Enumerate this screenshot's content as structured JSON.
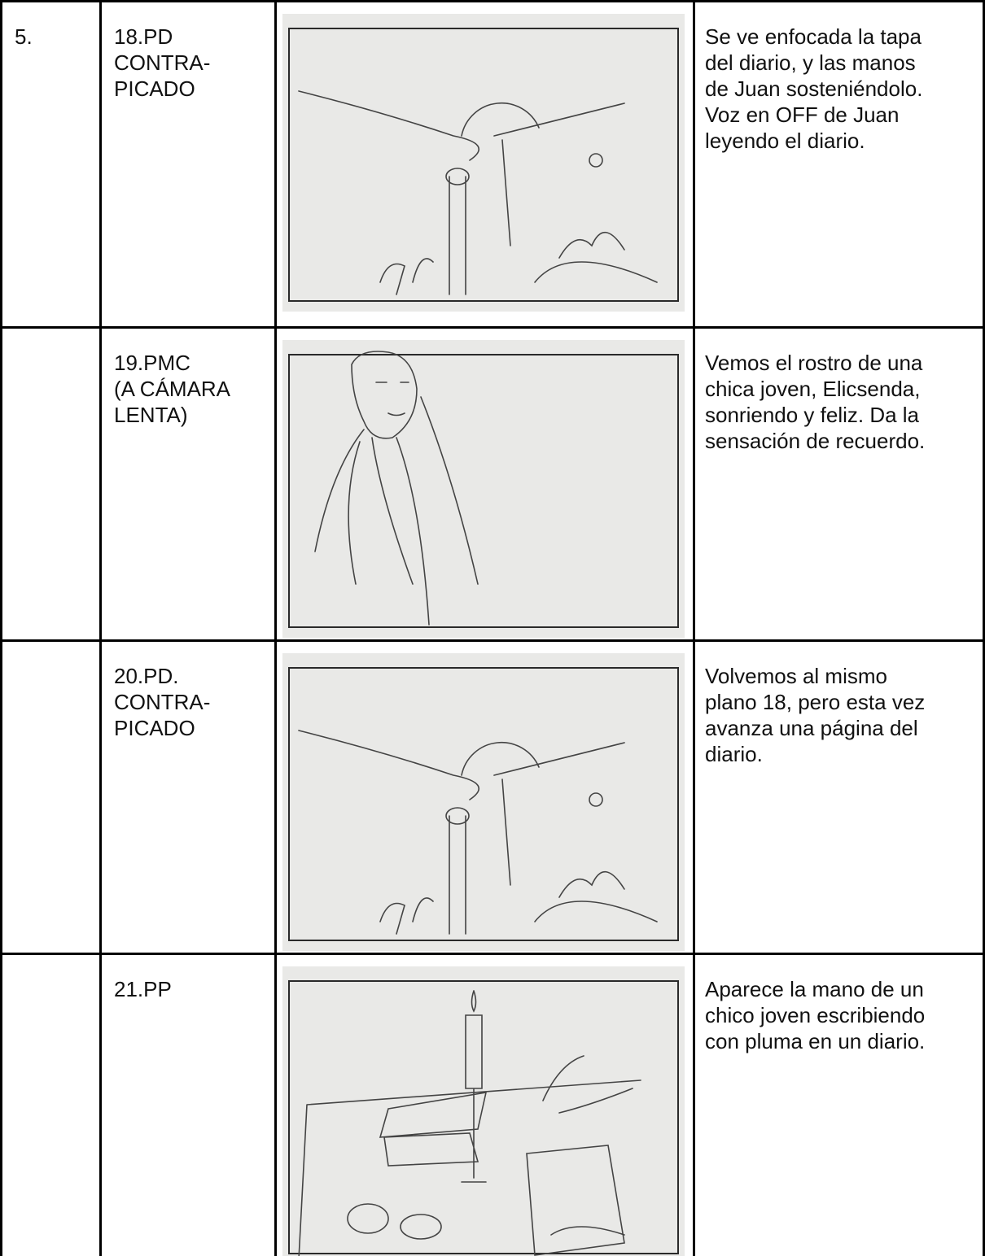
{
  "table": {
    "rows": [
      {
        "number": "5.",
        "shot": [
          "18.PD",
          "CONTRA-",
          "PICADO"
        ],
        "description": [
          "Se ve enfocada la tapa",
          "del diario, y las manos",
          "de Juan sosteniéndolo.",
          "Voz en OFF de Juan",
          "leyendo el diario."
        ]
      },
      {
        "shot": [
          "19.PMC",
          "(A CÁMARA",
          "LENTA)"
        ],
        "description": [
          "Vemos el rostro de una",
          "chica joven, Elicsenda,",
          "sonriendo y feliz. Da la",
          "sensación de recuerdo."
        ]
      },
      {
        "shot": [
          "20.PD.",
          "CONTRA-",
          "PICADO"
        ],
        "description": [
          "Volvemos al mismo",
          "plano 18, pero esta vez",
          "avanza una página del",
          "diario."
        ]
      },
      {
        "shot": [
          "21.PP"
        ],
        "description": [
          "Aparece la mano de un",
          "chico joven escribiendo",
          "con pluma en un diario."
        ]
      }
    ]
  }
}
